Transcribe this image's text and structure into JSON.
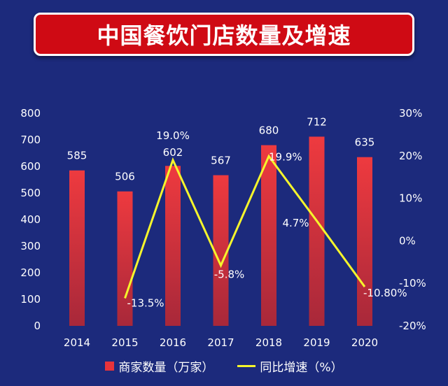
{
  "title": "中国餐饮门店数量及增速",
  "colors": {
    "background": "#1c2a7c",
    "title_bg": "#cf0a14",
    "bar": "#e8333a",
    "line": "#f5f52c",
    "text": "#ffffff"
  },
  "chart_data": {
    "type": "bar+line",
    "categories": [
      "2014",
      "2015",
      "2016",
      "2017",
      "2018",
      "2019",
      "2020"
    ],
    "left_axis": {
      "ylim": [
        0,
        800
      ],
      "ticks": [
        "0",
        "100",
        "200",
        "300",
        "400",
        "500",
        "600",
        "700",
        "800"
      ]
    },
    "right_axis": {
      "ylim": [
        -20,
        30
      ],
      "ticks": [
        "-20%",
        "-10%",
        "0%",
        "10%",
        "20%",
        "30%"
      ]
    },
    "series": [
      {
        "name": "商家数量（万家）",
        "type": "bar",
        "axis": "left",
        "values": [
          585,
          506,
          602,
          567,
          680,
          712,
          635
        ],
        "labels": [
          "585",
          "506",
          "602",
          "567",
          "680",
          "712",
          "635"
        ]
      },
      {
        "name": "同比增速（%）",
        "type": "line",
        "axis": "right",
        "x": [
          "2015",
          "2016",
          "2017",
          "2018",
          "2019",
          "2020"
        ],
        "values": [
          -13.5,
          19.0,
          -5.8,
          19.9,
          4.7,
          -10.8
        ],
        "labels": [
          "-13.5%",
          "19.0%",
          "-5.8%",
          "19.9%",
          "4.7%",
          "-10.80%"
        ]
      }
    ],
    "legend_position": "bottom",
    "grid": false
  }
}
